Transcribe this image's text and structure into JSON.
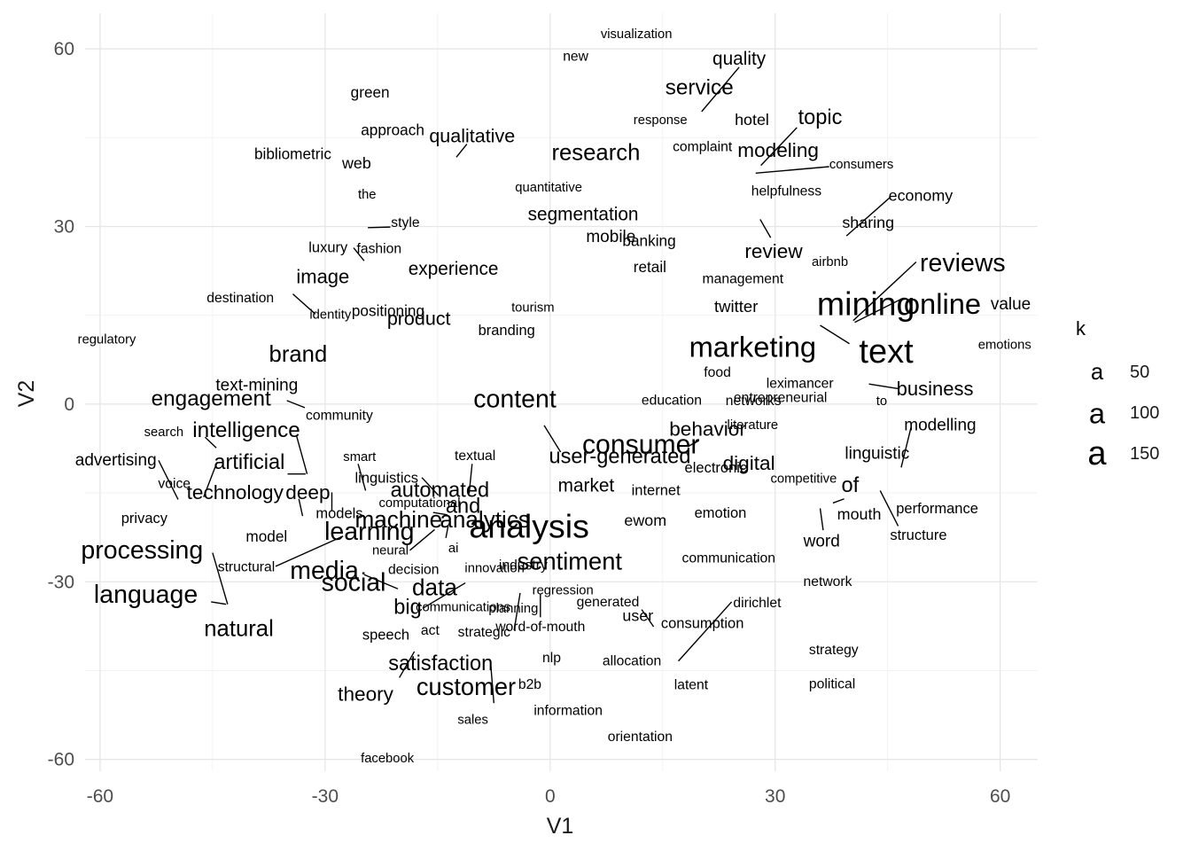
{
  "chart_data": {
    "type": "scatter",
    "title": "",
    "xlabel": "V1",
    "ylabel": "V2",
    "xlim": [
      -62,
      65
    ],
    "ylim": [
      -62,
      66
    ],
    "xticks": [
      -60,
      -30,
      0,
      30,
      60
    ],
    "yticks": [
      -60,
      -30,
      0,
      30,
      60
    ],
    "grid": true,
    "legend": {
      "title": "k",
      "placement": "right",
      "glyph": "a",
      "entries": [
        {
          "label": "50",
          "k": 50
        },
        {
          "label": "100",
          "k": 100
        },
        {
          "label": "150",
          "k": 150
        }
      ]
    },
    "points": [
      {
        "label": "visualization",
        "x": 11.5,
        "y": 62.4,
        "k": 6
      },
      {
        "label": "new",
        "x": 3.4,
        "y": 58.7,
        "k": 8
      },
      {
        "label": "quality",
        "x": 25.2,
        "y": 58.3,
        "k": 25
      },
      {
        "label": "service",
        "x": 19.9,
        "y": 53.4,
        "k": 42
      },
      {
        "label": "green",
        "x": -24.0,
        "y": 52.7,
        "k": 12
      },
      {
        "label": "response",
        "x": 14.7,
        "y": 47.9,
        "k": 6
      },
      {
        "label": "hotel",
        "x": 26.9,
        "y": 48.0,
        "k": 14
      },
      {
        "label": "topic",
        "x": 36.0,
        "y": 48.3,
        "k": 38
      },
      {
        "label": "approach",
        "x": -21.0,
        "y": 46.3,
        "k": 12
      },
      {
        "label": "qualitative",
        "x": -10.4,
        "y": 45.3,
        "k": 28
      },
      {
        "label": "bibliometric",
        "x": -34.3,
        "y": 42.3,
        "k": 12
      },
      {
        "label": "web",
        "x": -25.8,
        "y": 40.7,
        "k": 14
      },
      {
        "label": "research",
        "x": 6.1,
        "y": 42.4,
        "k": 50
      },
      {
        "label": "complaint",
        "x": 20.3,
        "y": 43.4,
        "k": 8
      },
      {
        "label": "modeling",
        "x": 30.4,
        "y": 42.9,
        "k": 33
      },
      {
        "label": "consumers",
        "x": 41.5,
        "y": 40.4,
        "k": 6
      },
      {
        "label": "the",
        "x": -24.4,
        "y": 35.3,
        "k": 6
      },
      {
        "label": "quantitative",
        "x": -0.2,
        "y": 36.5,
        "k": 6
      },
      {
        "label": "helpfulness",
        "x": 31.5,
        "y": 35.9,
        "k": 8
      },
      {
        "label": "economy",
        "x": 49.4,
        "y": 35.2,
        "k": 14
      },
      {
        "label": "segmentation",
        "x": 4.4,
        "y": 32.0,
        "k": 25
      },
      {
        "label": "style",
        "x": -19.3,
        "y": 30.6,
        "k": 8
      },
      {
        "label": "sharing",
        "x": 42.4,
        "y": 30.7,
        "k": 14
      },
      {
        "label": "mobile",
        "x": 8.1,
        "y": 28.2,
        "k": 18
      },
      {
        "label": "banking",
        "x": 13.2,
        "y": 27.6,
        "k": 12
      },
      {
        "label": "luxury",
        "x": -29.6,
        "y": 26.4,
        "k": 10
      },
      {
        "label": "fashion",
        "x": -22.8,
        "y": 26.2,
        "k": 8
      },
      {
        "label": "review",
        "x": 29.8,
        "y": 25.8,
        "k": 33
      },
      {
        "label": "airbnb",
        "x": 37.3,
        "y": 23.9,
        "k": 6
      },
      {
        "label": "reviews",
        "x": 55.0,
        "y": 23.8,
        "k": 68
      },
      {
        "label": "experience",
        "x": -12.9,
        "y": 22.8,
        "k": 25
      },
      {
        "label": "retail",
        "x": 13.3,
        "y": 23.2,
        "k": 12
      },
      {
        "label": "image",
        "x": -30.3,
        "y": 21.5,
        "k": 30
      },
      {
        "label": "management",
        "x": 25.7,
        "y": 21.1,
        "k": 8
      },
      {
        "label": "destination",
        "x": -41.3,
        "y": 17.9,
        "k": 8
      },
      {
        "label": "identity",
        "x": -29.3,
        "y": 15.0,
        "k": 6
      },
      {
        "label": "positioning",
        "x": -21.6,
        "y": 15.8,
        "k": 12
      },
      {
        "label": "tourism",
        "x": -2.3,
        "y": 16.2,
        "k": 6
      },
      {
        "label": "twitter",
        "x": 24.8,
        "y": 16.5,
        "k": 16
      },
      {
        "label": "mining",
        "x": 42.1,
        "y": 17.0,
        "k": 145
      },
      {
        "label": "online",
        "x": 52.3,
        "y": 17.0,
        "k": 100
      },
      {
        "label": "value",
        "x": 61.4,
        "y": 16.8,
        "k": 18
      },
      {
        "label": "product",
        "x": -17.5,
        "y": 14.4,
        "k": 28
      },
      {
        "label": "branding",
        "x": -5.8,
        "y": 12.4,
        "k": 10
      },
      {
        "label": "marketing",
        "x": 27.0,
        "y": 9.7,
        "k": 100
      },
      {
        "label": "text",
        "x": 44.8,
        "y": 8.8,
        "k": 150
      },
      {
        "label": "regulatory",
        "x": -59.1,
        "y": 10.8,
        "k": 6
      },
      {
        "label": "emotions",
        "x": 60.6,
        "y": 9.9,
        "k": 6
      },
      {
        "label": "brand",
        "x": -33.6,
        "y": 8.4,
        "k": 50
      },
      {
        "label": "food",
        "x": 22.3,
        "y": 5.3,
        "k": 8
      },
      {
        "label": "leximancer",
        "x": 33.3,
        "y": 3.4,
        "k": 8
      },
      {
        "label": "text-mining",
        "x": -39.1,
        "y": 3.1,
        "k": 18
      },
      {
        "label": "business",
        "x": 51.3,
        "y": 2.6,
        "k": 30
      },
      {
        "label": "engagement",
        "x": -45.2,
        "y": 0.9,
        "k": 42
      },
      {
        "label": "content",
        "x": -4.7,
        "y": 0.8,
        "k": 68
      },
      {
        "label": "education",
        "x": 16.2,
        "y": 0.6,
        "k": 8
      },
      {
        "label": "networks",
        "x": 27.1,
        "y": 0.5,
        "k": 8
      },
      {
        "label": "entrepreneurial",
        "x": 30.7,
        "y": 1.0,
        "k": 8
      },
      {
        "label": "to",
        "x": 44.2,
        "y": 0.4,
        "k": 6
      },
      {
        "label": "community",
        "x": -28.1,
        "y": -2.0,
        "k": 8
      },
      {
        "label": "literature",
        "x": 27.0,
        "y": -3.6,
        "k": 6
      },
      {
        "label": "behavior",
        "x": 21.0,
        "y": -4.2,
        "k": 33
      },
      {
        "label": "modelling",
        "x": 52.0,
        "y": -3.6,
        "k": 18
      },
      {
        "label": "search",
        "x": -51.5,
        "y": -4.8,
        "k": 6
      },
      {
        "label": "intelligence",
        "x": -40.5,
        "y": -4.4,
        "k": 42
      },
      {
        "label": "consumer",
        "x": 12.1,
        "y": -6.9,
        "k": 80
      },
      {
        "label": "user-generated",
        "x": 9.3,
        "y": -8.9,
        "k": 38
      },
      {
        "label": "linguistic",
        "x": 43.6,
        "y": -8.4,
        "k": 18
      },
      {
        "label": "smart",
        "x": -25.4,
        "y": -9.0,
        "k": 6
      },
      {
        "label": "textual",
        "x": -10.0,
        "y": -8.8,
        "k": 8
      },
      {
        "label": "advertising",
        "x": -57.9,
        "y": -9.5,
        "k": 18
      },
      {
        "label": "artificial",
        "x": -40.1,
        "y": -9.9,
        "k": 38
      },
      {
        "label": "digital",
        "x": 26.5,
        "y": -10.0,
        "k": 33
      },
      {
        "label": "electronic",
        "x": 22.1,
        "y": -10.8,
        "k": 10
      },
      {
        "label": "competitive",
        "x": 33.8,
        "y": -12.7,
        "k": 6
      },
      {
        "label": "linguistics",
        "x": -21.8,
        "y": -12.5,
        "k": 10
      },
      {
        "label": "of",
        "x": 40.0,
        "y": -13.8,
        "k": 38
      },
      {
        "label": "market",
        "x": 4.8,
        "y": -13.8,
        "k": 25
      },
      {
        "label": "voice",
        "x": -50.1,
        "y": -13.5,
        "k": 8
      },
      {
        "label": "internet",
        "x": 14.1,
        "y": -14.6,
        "k": 10
      },
      {
        "label": "automated",
        "x": -14.7,
        "y": -14.6,
        "k": 38
      },
      {
        "label": "technology",
        "x": -42.0,
        "y": -14.9,
        "k": 33
      },
      {
        "label": "deep",
        "x": -32.3,
        "y": -14.9,
        "k": 33
      },
      {
        "label": "computational",
        "x": -17.4,
        "y": -16.8,
        "k": 6
      },
      {
        "label": "and",
        "x": -11.6,
        "y": -17.3,
        "k": 38
      },
      {
        "label": "emotion",
        "x": 22.7,
        "y": -18.4,
        "k": 10
      },
      {
        "label": "performance",
        "x": 51.6,
        "y": -17.7,
        "k": 10
      },
      {
        "label": "mouth",
        "x": 41.2,
        "y": -18.6,
        "k": 14
      },
      {
        "label": "models",
        "x": -28.1,
        "y": -18.5,
        "k": 10
      },
      {
        "label": "privacy",
        "x": -54.1,
        "y": -19.3,
        "k": 10
      },
      {
        "label": "machine",
        "x": -20.2,
        "y": -19.5,
        "k": 52
      },
      {
        "label": "analytics",
        "x": -8.7,
        "y": -19.5,
        "k": 52
      },
      {
        "label": "analysis",
        "x": -2.8,
        "y": -20.6,
        "k": 145
      },
      {
        "label": "ewom",
        "x": 12.7,
        "y": -19.6,
        "k": 14
      },
      {
        "label": "learning",
        "x": -24.1,
        "y": -21.6,
        "k": 68
      },
      {
        "label": "model",
        "x": -37.8,
        "y": -22.3,
        "k": 12
      },
      {
        "label": "structure",
        "x": 49.1,
        "y": -22.2,
        "k": 10
      },
      {
        "label": "word",
        "x": 36.2,
        "y": -23.2,
        "k": 18
      },
      {
        "label": "neural",
        "x": -21.3,
        "y": -24.8,
        "k": 6
      },
      {
        "label": "ai",
        "x": -12.9,
        "y": -24.4,
        "k": 6
      },
      {
        "label": "processing",
        "x": -54.4,
        "y": -24.7,
        "k": 68
      },
      {
        "label": "sentiment",
        "x": 2.6,
        "y": -26.5,
        "k": 60
      },
      {
        "label": "communication",
        "x": 23.8,
        "y": -26.1,
        "k": 8
      },
      {
        "label": "industry",
        "x": -3.6,
        "y": -27.3,
        "k": 8
      },
      {
        "label": "innovation",
        "x": -7.4,
        "y": -27.8,
        "k": 6
      },
      {
        "label": "structural",
        "x": -40.5,
        "y": -27.6,
        "k": 8
      },
      {
        "label": "media",
        "x": -30.1,
        "y": -28.2,
        "k": 68
      },
      {
        "label": "decision",
        "x": -18.2,
        "y": -28.0,
        "k": 8
      },
      {
        "label": "social",
        "x": -26.2,
        "y": -30.2,
        "k": 68
      },
      {
        "label": "network",
        "x": 37.0,
        "y": -30.0,
        "k": 8
      },
      {
        "label": "data",
        "x": -15.4,
        "y": -30.9,
        "k": 52
      },
      {
        "label": "language",
        "x": -53.9,
        "y": -32.2,
        "k": 68
      },
      {
        "label": "regression",
        "x": 1.7,
        "y": -31.5,
        "k": 6
      },
      {
        "label": "generated",
        "x": 7.7,
        "y": -33.5,
        "k": 8
      },
      {
        "label": "dirichlet",
        "x": 27.6,
        "y": -33.6,
        "k": 8
      },
      {
        "label": "big",
        "x": -19.0,
        "y": -34.4,
        "k": 38
      },
      {
        "label": "communications",
        "x": -11.6,
        "y": -34.4,
        "k": 6
      },
      {
        "label": "planning",
        "x": -4.9,
        "y": -34.6,
        "k": 6
      },
      {
        "label": "user",
        "x": 11.7,
        "y": -35.7,
        "k": 14
      },
      {
        "label": "consumption",
        "x": 20.3,
        "y": -37.1,
        "k": 10
      },
      {
        "label": "natural",
        "x": -41.5,
        "y": -38.0,
        "k": 50
      },
      {
        "label": "word-of-mouth",
        "x": -1.3,
        "y": -37.7,
        "k": 8
      },
      {
        "label": "speech",
        "x": -21.9,
        "y": -39.0,
        "k": 10
      },
      {
        "label": "act",
        "x": -16.0,
        "y": -38.3,
        "k": 8
      },
      {
        "label": "strategic",
        "x": -8.8,
        "y": -38.6,
        "k": 8
      },
      {
        "label": "strategy",
        "x": 37.8,
        "y": -41.6,
        "k": 8
      },
      {
        "label": "nlp",
        "x": 0.2,
        "y": -42.9,
        "k": 8
      },
      {
        "label": "allocation",
        "x": 10.9,
        "y": -43.4,
        "k": 8
      },
      {
        "label": "satisfaction",
        "x": -14.6,
        "y": -43.9,
        "k": 38
      },
      {
        "label": "customer",
        "x": -11.2,
        "y": -47.7,
        "k": 60
      },
      {
        "label": "b2b",
        "x": -2.7,
        "y": -47.4,
        "k": 8
      },
      {
        "label": "latent",
        "x": 18.8,
        "y": -47.5,
        "k": 8
      },
      {
        "label": "political",
        "x": 37.6,
        "y": -47.3,
        "k": 8
      },
      {
        "label": "theory",
        "x": -24.6,
        "y": -49.0,
        "k": 33
      },
      {
        "label": "information",
        "x": 2.4,
        "y": -51.8,
        "k": 8
      },
      {
        "label": "sales",
        "x": -10.3,
        "y": -53.4,
        "k": 6
      },
      {
        "label": "orientation",
        "x": 12.0,
        "y": -56.2,
        "k": 8
      },
      {
        "label": "facebook",
        "x": -21.7,
        "y": -59.9,
        "k": 6
      }
    ],
    "segments": [
      {
        "x1": 25.2,
        "y1": 56.9,
        "x2": 20.2,
        "y2": 49.4
      },
      {
        "x1": 32.9,
        "y1": 46.7,
        "x2": 28.1,
        "y2": 40.3
      },
      {
        "x1": 27.4,
        "y1": 39.0,
        "x2": 37.2,
        "y2": 40.1
      },
      {
        "x1": -11.1,
        "y1": 43.9,
        "x2": -12.5,
        "y2": 41.7
      },
      {
        "x1": 45.4,
        "y1": 35.0,
        "x2": 39.5,
        "y2": 28.4
      },
      {
        "x1": -21.3,
        "y1": 29.9,
        "x2": -24.3,
        "y2": 29.8
      },
      {
        "x1": -26.2,
        "y1": 26.4,
        "x2": -24.8,
        "y2": 24.2
      },
      {
        "x1": 28.0,
        "y1": 31.2,
        "x2": 29.4,
        "y2": 28.1
      },
      {
        "x1": 48.8,
        "y1": 24.0,
        "x2": 40.4,
        "y2": 14.1
      },
      {
        "x1": 46.9,
        "y1": 17.8,
        "x2": 40.6,
        "y2": 13.8
      },
      {
        "x1": -34.3,
        "y1": 18.6,
        "x2": -31.3,
        "y2": 15.2
      },
      {
        "x1": 36.0,
        "y1": 13.3,
        "x2": 39.9,
        "y2": 10.2
      },
      {
        "x1": 42.5,
        "y1": 3.4,
        "x2": 46.4,
        "y2": 2.6
      },
      {
        "x1": -35.1,
        "y1": 0.6,
        "x2": -32.7,
        "y2": -0.6
      },
      {
        "x1": -0.8,
        "y1": -3.6,
        "x2": 1.4,
        "y2": -8.1
      },
      {
        "x1": 19.8,
        "y1": -6.2,
        "x2": 18.3,
        "y2": -7.2
      },
      {
        "x1": 48.1,
        "y1": -4.0,
        "x2": 46.8,
        "y2": -10.7
      },
      {
        "x1": -46.0,
        "y1": -5.6,
        "x2": -44.5,
        "y2": -7.4
      },
      {
        "x1": -33.8,
        "y1": -5.4,
        "x2": -32.4,
        "y2": -11.8
      },
      {
        "x1": -35.0,
        "y1": -11.8,
        "x2": -32.6,
        "y2": -11.8
      },
      {
        "x1": -52.2,
        "y1": -9.5,
        "x2": -49.6,
        "y2": -16.1
      },
      {
        "x1": -46.2,
        "y1": -15.7,
        "x2": -44.4,
        "y2": -9.8
      },
      {
        "x1": -25.6,
        "y1": -10.1,
        "x2": -24.6,
        "y2": -14.6
      },
      {
        "x1": -10.4,
        "y1": -10.1,
        "x2": -10.8,
        "y2": -15.1
      },
      {
        "x1": -17.1,
        "y1": -12.4,
        "x2": -14.9,
        "y2": -15.4
      },
      {
        "x1": 39.2,
        "y1": -16.0,
        "x2": 37.7,
        "y2": -16.7
      },
      {
        "x1": 36.0,
        "y1": -17.6,
        "x2": 36.4,
        "y2": -21.3
      },
      {
        "x1": 44.0,
        "y1": -14.6,
        "x2": 46.4,
        "y2": -20.6
      },
      {
        "x1": -33.5,
        "y1": -16.0,
        "x2": -33.0,
        "y2": -18.9
      },
      {
        "x1": -29.1,
        "y1": -14.9,
        "x2": -29.1,
        "y2": -18.1
      },
      {
        "x1": -15.6,
        "y1": -18.3,
        "x2": -13.7,
        "y2": -18.7
      },
      {
        "x1": -18.7,
        "y1": -24.7,
        "x2": -15.4,
        "y2": -21.2
      },
      {
        "x1": -13.9,
        "y1": -22.6,
        "x2": -13.6,
        "y2": -20.6
      },
      {
        "x1": -36.6,
        "y1": -27.4,
        "x2": -27.6,
        "y2": -22.3
      },
      {
        "x1": -45.0,
        "y1": -25.1,
        "x2": -43.0,
        "y2": -33.8
      },
      {
        "x1": -45.2,
        "y1": -33.4,
        "x2": -43.2,
        "y2": -33.8
      },
      {
        "x1": -24.8,
        "y1": -28.8,
        "x2": -20.3,
        "y2": -31.2
      },
      {
        "x1": -11.3,
        "y1": -30.2,
        "x2": -17.0,
        "y2": -34.5
      },
      {
        "x1": -4.0,
        "y1": -31.9,
        "x2": -4.8,
        "y2": -38.2
      },
      {
        "x1": -1.3,
        "y1": -32.1,
        "x2": -1.3,
        "y2": -36.0
      },
      {
        "x1": 12.2,
        "y1": -34.7,
        "x2": 13.8,
        "y2": -37.6
      },
      {
        "x1": 24.2,
        "y1": -33.4,
        "x2": 17.1,
        "y2": -43.4
      },
      {
        "x1": -20.1,
        "y1": -46.2,
        "x2": -18.1,
        "y2": -41.8
      },
      {
        "x1": -7.9,
        "y1": -44.3,
        "x2": -7.5,
        "y2": -50.5
      }
    ]
  }
}
